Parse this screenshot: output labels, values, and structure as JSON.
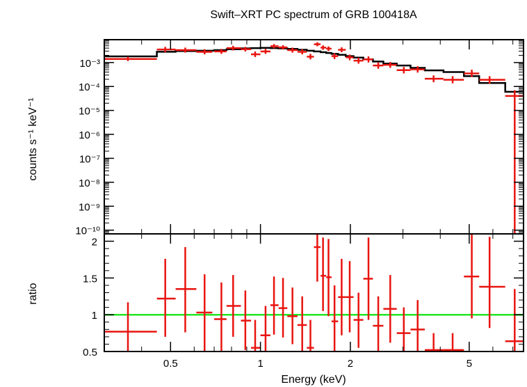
{
  "colors": {
    "data": "#e8140f",
    "model": "#000000",
    "reference": "#22e622",
    "frame": "#000000"
  },
  "chart_data": [
    {
      "type": "scatter",
      "panel": "spectrum",
      "title": "Swift–XRT PC spectrum of GRB 100418A",
      "ylabel": "counts s⁻¹ keV⁻¹",
      "xlabel": "",
      "xscale": "log",
      "yscale": "log",
      "xlim": [
        0.3,
        7.6
      ],
      "ylim": [
        7e-11,
        0.009
      ],
      "yticks": [
        {
          "value": 0.001,
          "label": "10⁻³"
        },
        {
          "value": 0.0001,
          "label": "10⁻⁴"
        },
        {
          "value": 1e-05,
          "label": "10⁻⁵"
        },
        {
          "value": 1e-06,
          "label": "10⁻⁶"
        },
        {
          "value": 1e-07,
          "label": "10⁻⁷"
        },
        {
          "value": 1e-08,
          "label": "10⁻⁸"
        },
        {
          "value": 1e-09,
          "label": "10⁻⁹"
        },
        {
          "value": 1e-10,
          "label": "10⁻¹⁰"
        }
      ],
      "series": [
        {
          "kind": "data",
          "points": [
            {
              "x": 0.36,
              "xlo": 0.3,
              "xhi": 0.45,
              "y": 0.0014,
              "ylo": 0.00115,
              "yhi": 0.00175
            },
            {
              "x": 0.48,
              "xlo": 0.45,
              "xhi": 0.52,
              "y": 0.0035,
              "ylo": 0.0027,
              "yhi": 0.0045
            },
            {
              "x": 0.56,
              "xlo": 0.52,
              "xhi": 0.61,
              "y": 0.0033,
              "ylo": 0.0026,
              "yhi": 0.0042
            },
            {
              "x": 0.65,
              "xlo": 0.61,
              "xhi": 0.69,
              "y": 0.0028,
              "ylo": 0.0022,
              "yhi": 0.0036
            },
            {
              "x": 0.74,
              "xlo": 0.7,
              "xhi": 0.77,
              "y": 0.0029,
              "ylo": 0.0023,
              "yhi": 0.0037
            },
            {
              "x": 0.81,
              "xlo": 0.77,
              "xhi": 0.86,
              "y": 0.004,
              "ylo": 0.0032,
              "yhi": 0.005
            },
            {
              "x": 0.89,
              "xlo": 0.86,
              "xhi": 0.93,
              "y": 0.0036,
              "ylo": 0.0029,
              "yhi": 0.0045
            },
            {
              "x": 0.96,
              "xlo": 0.93,
              "xhi": 1.0,
              "y": 0.0022,
              "ylo": 0.0017,
              "yhi": 0.0029
            },
            {
              "x": 1.04,
              "xlo": 1.0,
              "xhi": 1.08,
              "y": 0.0029,
              "ylo": 0.0023,
              "yhi": 0.0037
            },
            {
              "x": 1.11,
              "xlo": 1.08,
              "xhi": 1.15,
              "y": 0.0048,
              "ylo": 0.0039,
              "yhi": 0.0059
            },
            {
              "x": 1.19,
              "xlo": 1.15,
              "xhi": 1.23,
              "y": 0.0043,
              "ylo": 0.0035,
              "yhi": 0.0053
            },
            {
              "x": 1.28,
              "xlo": 1.23,
              "xhi": 1.33,
              "y": 0.0033,
              "ylo": 0.0026,
              "yhi": 0.0042
            },
            {
              "x": 1.38,
              "xlo": 1.33,
              "xhi": 1.43,
              "y": 0.0028,
              "ylo": 0.0022,
              "yhi": 0.0036
            },
            {
              "x": 1.47,
              "xlo": 1.43,
              "xhi": 1.51,
              "y": 0.00175,
              "ylo": 0.00135,
              "yhi": 0.0023
            },
            {
              "x": 1.55,
              "xlo": 1.51,
              "xhi": 1.59,
              "y": 0.0058,
              "ylo": 0.0048,
              "yhi": 0.007
            },
            {
              "x": 1.62,
              "xlo": 1.59,
              "xhi": 1.66,
              "y": 0.0042,
              "ylo": 0.0034,
              "yhi": 0.0052
            },
            {
              "x": 1.69,
              "xlo": 1.66,
              "xhi": 1.73,
              "y": 0.0038,
              "ylo": 0.003,
              "yhi": 0.0047
            },
            {
              "x": 1.77,
              "xlo": 1.73,
              "xhi": 1.82,
              "y": 0.00185,
              "ylo": 0.0014,
              "yhi": 0.0024
            },
            {
              "x": 1.87,
              "xlo": 1.82,
              "xhi": 1.93,
              "y": 0.0034,
              "ylo": 0.0027,
              "yhi": 0.0043
            },
            {
              "x": 1.99,
              "xlo": 1.93,
              "xhi": 2.05,
              "y": 0.00165,
              "ylo": 0.00125,
              "yhi": 0.00215
            },
            {
              "x": 2.13,
              "xlo": 2.05,
              "xhi": 2.21,
              "y": 0.0012,
              "ylo": 0.0009,
              "yhi": 0.0016
            },
            {
              "x": 2.3,
              "xlo": 2.21,
              "xhi": 2.38,
              "y": 0.00135,
              "ylo": 0.001,
              "yhi": 0.0018
            },
            {
              "x": 2.48,
              "xlo": 2.38,
              "xhi": 2.58,
              "y": 0.00075,
              "ylo": 0.00055,
              "yhi": 0.001
            },
            {
              "x": 2.72,
              "xlo": 2.58,
              "xhi": 2.86,
              "y": 0.0008,
              "ylo": 0.0006,
              "yhi": 0.00105
            },
            {
              "x": 3.02,
              "xlo": 2.86,
              "xhi": 3.18,
              "y": 0.00048,
              "ylo": 0.00035,
              "yhi": 0.00065
            },
            {
              "x": 3.36,
              "xlo": 3.18,
              "xhi": 3.55,
              "y": 0.00052,
              "ylo": 0.00038,
              "yhi": 0.0007
            },
            {
              "x": 3.8,
              "xlo": 3.55,
              "xhi": 4.1,
              "y": 0.00021,
              "ylo": 0.00015,
              "yhi": 0.00029
            },
            {
              "x": 4.4,
              "xlo": 4.1,
              "xhi": 4.8,
              "y": 0.00019,
              "ylo": 0.000135,
              "yhi": 0.00027
            },
            {
              "x": 5.1,
              "xlo": 4.8,
              "xhi": 5.4,
              "y": 0.00035,
              "ylo": 0.00025,
              "yhi": 0.0005
            },
            {
              "x": 5.85,
              "xlo": 5.4,
              "xhi": 6.6,
              "y": 0.00019,
              "ylo": 0.00013,
              "yhi": 0.00027
            },
            {
              "x": 7.1,
              "xlo": 6.6,
              "xhi": 7.6,
              "y": 4e-05,
              "ylo": 7e-11,
              "yhi": 7e-05
            }
          ]
        },
        {
          "kind": "model-step",
          "edges": [
            0.3,
            0.45,
            0.52,
            0.61,
            0.7,
            0.77,
            0.86,
            0.93,
            1.0,
            1.08,
            1.15,
            1.23,
            1.33,
            1.43,
            1.51,
            1.59,
            1.66,
            1.73,
            1.82,
            1.93,
            2.05,
            2.21,
            2.38,
            2.58,
            2.86,
            3.18,
            3.55,
            4.1,
            4.8,
            5.4,
            6.6,
            7.6
          ],
          "values": [
            0.0018,
            0.0028,
            0.003,
            0.0031,
            0.0033,
            0.0036,
            0.0039,
            0.004,
            0.0041,
            0.004,
            0.0039,
            0.0037,
            0.0034,
            0.0031,
            0.0029,
            0.0027,
            0.0025,
            0.0023,
            0.0021,
            0.00185,
            0.0016,
            0.00135,
            0.0011,
            0.0009,
            0.00075,
            0.0006,
            0.00047,
            0.0004,
            0.00027,
            0.00014,
            6e-05
          ]
        }
      ]
    },
    {
      "type": "scatter",
      "panel": "ratio",
      "ylabel": "ratio",
      "xlabel": "Energy (keV)",
      "xscale": "log",
      "yscale": "linear",
      "xlim": [
        0.3,
        7.6
      ],
      "ylim": [
        0.5,
        2.1
      ],
      "xticks": [
        {
          "value": 0.5,
          "label": "0.5"
        },
        {
          "value": 1,
          "label": "1"
        },
        {
          "value": 2,
          "label": "2"
        },
        {
          "value": 5,
          "label": "5"
        }
      ],
      "yticks": [
        {
          "value": 0.5,
          "label": "0.5"
        },
        {
          "value": 1,
          "label": "1"
        },
        {
          "value": 1.5,
          "label": "1.5"
        },
        {
          "value": 2,
          "label": "2"
        }
      ],
      "reference_line": 1,
      "series": [
        {
          "kind": "data",
          "points": [
            {
              "x": 0.36,
              "xlo": 0.3,
              "xhi": 0.45,
              "y": 0.77,
              "ylo": 0.38,
              "yhi": 1.17
            },
            {
              "x": 0.48,
              "xlo": 0.45,
              "xhi": 0.52,
              "y": 1.22,
              "ylo": 0.7,
              "yhi": 1.76
            },
            {
              "x": 0.56,
              "xlo": 0.52,
              "xhi": 0.61,
              "y": 1.35,
              "ylo": 0.76,
              "yhi": 1.92
            },
            {
              "x": 0.65,
              "xlo": 0.61,
              "xhi": 0.69,
              "y": 1.03,
              "ylo": 0.5,
              "yhi": 1.55
            },
            {
              "x": 0.74,
              "xlo": 0.7,
              "xhi": 0.77,
              "y": 0.94,
              "ylo": 0.45,
              "yhi": 1.44
            },
            {
              "x": 0.81,
              "xlo": 0.77,
              "xhi": 0.86,
              "y": 1.12,
              "ylo": 0.7,
              "yhi": 1.54
            },
            {
              "x": 0.89,
              "xlo": 0.86,
              "xhi": 0.93,
              "y": 0.92,
              "ylo": 0.52,
              "yhi": 1.33
            },
            {
              "x": 0.96,
              "xlo": 0.93,
              "xhi": 1.0,
              "y": 0.55,
              "ylo": 0.18,
              "yhi": 0.93
            },
            {
              "x": 1.04,
              "xlo": 1.0,
              "xhi": 1.08,
              "y": 0.72,
              "ylo": 0.33,
              "yhi": 1.12
            },
            {
              "x": 1.11,
              "xlo": 1.08,
              "xhi": 1.15,
              "y": 1.13,
              "ylo": 0.73,
              "yhi": 1.52
            },
            {
              "x": 1.19,
              "xlo": 1.15,
              "xhi": 1.23,
              "y": 1.09,
              "ylo": 0.69,
              "yhi": 1.5
            },
            {
              "x": 1.28,
              "xlo": 1.23,
              "xhi": 1.33,
              "y": 0.98,
              "ylo": 0.6,
              "yhi": 1.37
            },
            {
              "x": 1.38,
              "xlo": 1.33,
              "xhi": 1.43,
              "y": 0.86,
              "ylo": 0.47,
              "yhi": 1.25
            },
            {
              "x": 1.47,
              "xlo": 1.43,
              "xhi": 1.51,
              "y": 0.55,
              "ylo": 0.18,
              "yhi": 0.93
            },
            {
              "x": 1.55,
              "xlo": 1.51,
              "xhi": 1.59,
              "y": 1.92,
              "ylo": 1.45,
              "yhi": 2.4
            },
            {
              "x": 1.62,
              "xlo": 1.59,
              "xhi": 1.66,
              "y": 1.53,
              "ylo": 1.05,
              "yhi": 2.05
            },
            {
              "x": 1.69,
              "xlo": 1.66,
              "xhi": 1.73,
              "y": 1.51,
              "ylo": 0.98,
              "yhi": 2.03
            },
            {
              "x": 1.77,
              "xlo": 1.73,
              "xhi": 1.82,
              "y": 0.91,
              "ylo": 0.45,
              "yhi": 1.4
            },
            {
              "x": 1.87,
              "xlo": 1.82,
              "xhi": 1.93,
              "y": 1.24,
              "ylo": 0.72,
              "yhi": 1.76
            },
            {
              "x": 1.99,
              "xlo": 1.93,
              "xhi": 2.05,
              "y": 1.24,
              "ylo": 0.76,
              "yhi": 1.73
            },
            {
              "x": 2.13,
              "xlo": 2.05,
              "xhi": 2.21,
              "y": 0.93,
              "ylo": 0.55,
              "yhi": 1.3
            },
            {
              "x": 2.3,
              "xlo": 2.21,
              "xhi": 2.38,
              "y": 1.49,
              "ylo": 0.93,
              "yhi": 2.05
            },
            {
              "x": 2.48,
              "xlo": 2.38,
              "xhi": 2.58,
              "y": 0.85,
              "ylo": 0.45,
              "yhi": 1.25
            },
            {
              "x": 2.72,
              "xlo": 2.58,
              "xhi": 2.86,
              "y": 1.08,
              "ylo": 0.62,
              "yhi": 1.54
            },
            {
              "x": 3.02,
              "xlo": 2.86,
              "xhi": 3.18,
              "y": 0.75,
              "ylo": 0.4,
              "yhi": 1.1
            },
            {
              "x": 3.36,
              "xlo": 3.18,
              "xhi": 3.55,
              "y": 0.8,
              "ylo": 0.4,
              "yhi": 1.2
            },
            {
              "x": 3.8,
              "xlo": 3.55,
              "xhi": 4.1,
              "y": 0.52,
              "ylo": 0.3,
              "yhi": 0.75
            },
            {
              "x": 4.4,
              "xlo": 4.1,
              "xhi": 4.8,
              "y": 0.52,
              "ylo": 0.3,
              "yhi": 0.75
            },
            {
              "x": 5.1,
              "xlo": 4.8,
              "xhi": 5.4,
              "y": 1.52,
              "ylo": 0.95,
              "yhi": 2.14
            },
            {
              "x": 5.85,
              "xlo": 5.4,
              "xhi": 6.6,
              "y": 1.38,
              "ylo": 0.82,
              "yhi": 2.06
            },
            {
              "x": 7.1,
              "xlo": 6.6,
              "xhi": 7.6,
              "y": 0.64,
              "ylo": 0.3,
              "yhi": 1.35
            }
          ]
        }
      ]
    }
  ]
}
